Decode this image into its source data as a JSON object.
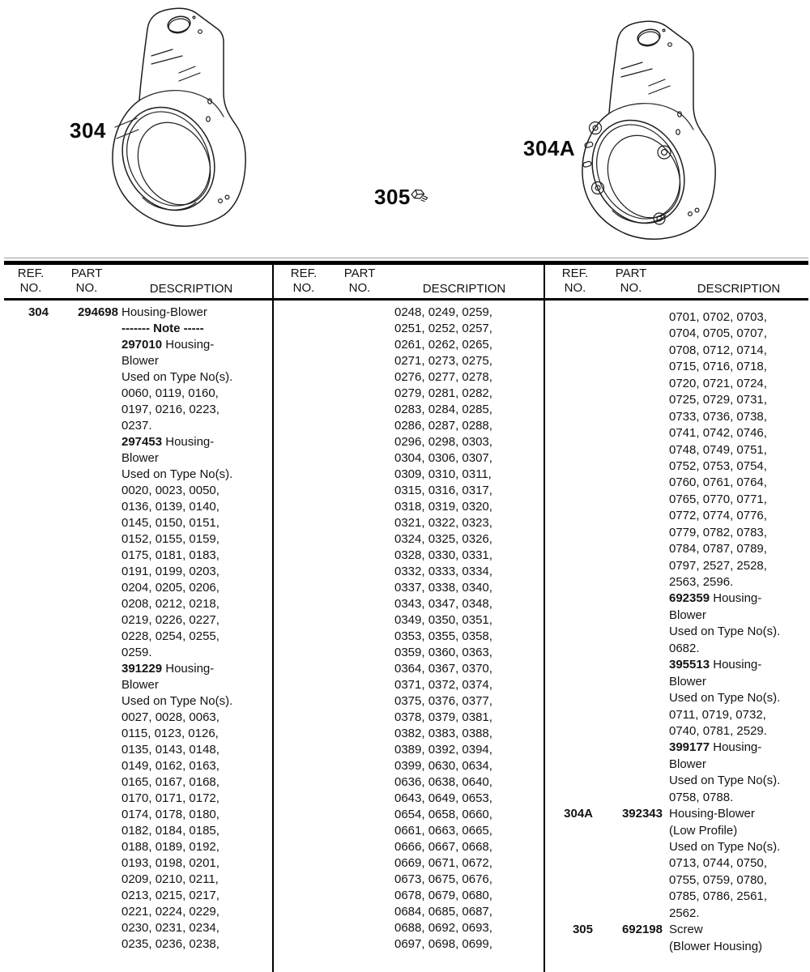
{
  "figures": {
    "left_label": "304",
    "right_label": "304A",
    "screw_label": "305",
    "left_drawing": "blower-housing",
    "right_drawing": "blower-housing-low-profile",
    "screw_drawing": "hex-head-screw"
  },
  "table": {
    "header": {
      "ref_line1": "REF.",
      "ref_line2": "NO.",
      "part_line1": "PART",
      "part_line2": "NO.",
      "description": "DESCRIPTION"
    },
    "columns": [
      {
        "lines": [
          {
            "r": "304",
            "p": "294698",
            "t": "Housing-Blower"
          },
          {
            "b": "------- Note -----"
          },
          {
            "b": "297010",
            "t": " Housing-"
          },
          {
            "t": "Blower"
          },
          {
            "t": "Used on Type No(s)."
          },
          {
            "t": "0060, 0119, 0160,"
          },
          {
            "t": "0197, 0216, 0223,"
          },
          {
            "t": "0237."
          },
          {
            "b": "297453",
            "t": " Housing-"
          },
          {
            "t": "Blower"
          },
          {
            "t": "Used on Type No(s)."
          },
          {
            "t": "0020, 0023, 0050,"
          },
          {
            "t": "0136, 0139, 0140,"
          },
          {
            "t": "0145, 0150, 0151,"
          },
          {
            "t": "0152, 0155, 0159,"
          },
          {
            "t": "0175, 0181, 0183,"
          },
          {
            "t": "0191, 0199, 0203,"
          },
          {
            "t": "0204, 0205, 0206,"
          },
          {
            "t": "0208, 0212, 0218,"
          },
          {
            "t": "0219, 0226, 0227,"
          },
          {
            "t": "0228, 0254, 0255,"
          },
          {
            "t": "0259."
          },
          {
            "b": "391229",
            "t": " Housing-"
          },
          {
            "t": "Blower"
          },
          {
            "t": "Used on Type No(s)."
          },
          {
            "t": "0027, 0028, 0063,"
          },
          {
            "t": "0115, 0123, 0126,"
          },
          {
            "t": "0135, 0143, 0148,"
          },
          {
            "t": "0149, 0162, 0163,"
          },
          {
            "t": "0165, 0167, 0168,"
          },
          {
            "t": "0170, 0171, 0172,"
          },
          {
            "t": "0174, 0178, 0180,"
          },
          {
            "t": "0182, 0184, 0185,"
          },
          {
            "t": "0188, 0189, 0192,"
          },
          {
            "t": "0193, 0198, 0201,"
          },
          {
            "t": "0209, 0210, 0211,"
          },
          {
            "t": "0213, 0215, 0217,"
          },
          {
            "t": "0221, 0224, 0229,"
          },
          {
            "t": "0230, 0231, 0234,"
          },
          {
            "t": "0235, 0236, 0238,"
          }
        ]
      },
      {
        "lines": [
          {
            "t": "0248, 0249, 0259,"
          },
          {
            "t": "0251, 0252, 0257,"
          },
          {
            "t": "0261, 0262, 0265,"
          },
          {
            "t": "0271, 0273, 0275,"
          },
          {
            "t": "0276, 0277, 0278,"
          },
          {
            "t": "0279, 0281, 0282,"
          },
          {
            "t": "0283, 0284, 0285,"
          },
          {
            "t": "0286, 0287, 0288,"
          },
          {
            "t": "0296, 0298, 0303,"
          },
          {
            "t": "0304, 0306, 0307,"
          },
          {
            "t": "0309, 0310, 0311,"
          },
          {
            "t": "0315, 0316, 0317,"
          },
          {
            "t": "0318, 0319, 0320,"
          },
          {
            "t": "0321, 0322, 0323,"
          },
          {
            "t": "0324, 0325, 0326,"
          },
          {
            "t": "0328, 0330, 0331,"
          },
          {
            "t": "0332, 0333, 0334,"
          },
          {
            "t": "0337, 0338, 0340,"
          },
          {
            "t": "0343, 0347, 0348,"
          },
          {
            "t": "0349, 0350, 0351,"
          },
          {
            "t": "0353, 0355, 0358,"
          },
          {
            "t": "0359, 0360, 0363,"
          },
          {
            "t": "0364, 0367, 0370,"
          },
          {
            "t": "0371, 0372, 0374,"
          },
          {
            "t": "0375, 0376, 0377,"
          },
          {
            "t": "0378, 0379, 0381,"
          },
          {
            "t": "0382, 0383, 0388,"
          },
          {
            "t": "0389, 0392, 0394,"
          },
          {
            "t": "0399, 0630, 0634,"
          },
          {
            "t": "0636, 0638, 0640,"
          },
          {
            "t": "0643, 0649, 0653,"
          },
          {
            "t": "0654, 0658, 0660,"
          },
          {
            "t": "0661, 0663, 0665,"
          },
          {
            "t": "0666, 0667, 0668,"
          },
          {
            "t": "0669, 0671, 0672,"
          },
          {
            "t": "0673, 0675, 0676,"
          },
          {
            "t": "0678, 0679, 0680,"
          },
          {
            "t": "0684, 0685, 0687,"
          },
          {
            "t": "0688, 0692, 0693,"
          },
          {
            "t": "0697, 0698, 0699,"
          }
        ]
      },
      {
        "lines": [
          {
            "t": "0701, 0702, 0703,"
          },
          {
            "t": "0704, 0705, 0707,"
          },
          {
            "t": "0708, 0712, 0714,"
          },
          {
            "t": "0715, 0716, 0718,"
          },
          {
            "t": "0720, 0721, 0724,"
          },
          {
            "t": "0725, 0729, 0731,"
          },
          {
            "t": "0733, 0736, 0738,"
          },
          {
            "t": "0741, 0742, 0746,"
          },
          {
            "t": "0748, 0749, 0751,"
          },
          {
            "t": "0752, 0753, 0754,"
          },
          {
            "t": "0760, 0761, 0764,"
          },
          {
            "t": "0765, 0770, 0771,"
          },
          {
            "t": "0772, 0774, 0776,"
          },
          {
            "t": "0779, 0782, 0783,"
          },
          {
            "t": "0784, 0787, 0789,"
          },
          {
            "t": "0797, 2527, 2528,"
          },
          {
            "t": "2563, 2596."
          },
          {
            "b": "692359",
            "t": " Housing-"
          },
          {
            "t": "Blower"
          },
          {
            "t": "Used on Type No(s)."
          },
          {
            "t": "0682."
          },
          {
            "b": "395513",
            "t": " Housing-"
          },
          {
            "t": "Blower"
          },
          {
            "t": "Used on Type No(s)."
          },
          {
            "t": "0711, 0719, 0732,"
          },
          {
            "t": "0740, 0781, 2529."
          },
          {
            "b": "399177",
            "t": " Housing-"
          },
          {
            "t": "Blower"
          },
          {
            "t": "Used on Type No(s)."
          },
          {
            "t": "0758, 0788."
          },
          {
            "r": "304A",
            "p": "392343",
            "t": "Housing-Blower"
          },
          {
            "t": "(Low Profile)"
          },
          {
            "t": "Used on Type No(s)."
          },
          {
            "t": "0713, 0744, 0750,"
          },
          {
            "t": "0755, 0759, 0780,"
          },
          {
            "t": "0785, 0786, 2561,"
          },
          {
            "t": "2562."
          },
          {
            "r": "305",
            "p": "692198",
            "t": "Screw"
          },
          {
            "t": "(Blower Housing)"
          }
        ]
      }
    ]
  }
}
